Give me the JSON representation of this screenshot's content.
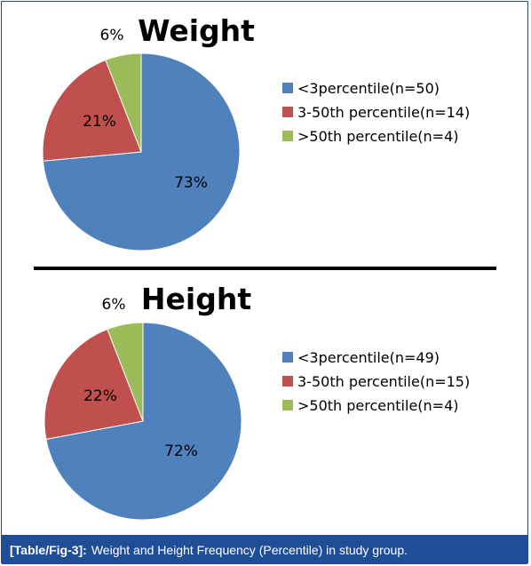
{
  "chart_data": [
    {
      "type": "pie",
      "title": "Weight",
      "categories": [
        "<3percentile(n=50)",
        "3-50th percentile(n=14)",
        ">50th percentile(n=4)"
      ],
      "values": [
        50,
        14,
        4
      ],
      "data_labels": [
        "73%",
        "21%",
        "6%"
      ],
      "colors": [
        "#4f81bd",
        "#c0504d",
        "#9bbb59"
      ],
      "legend": "right"
    },
    {
      "type": "pie",
      "title": "Height",
      "categories": [
        "<3percentile(n=49)",
        "3-50th percentile(n=15)",
        ">50th percentile(n=4)"
      ],
      "values": [
        49,
        15,
        4
      ],
      "data_labels": [
        "72%",
        "22%",
        "6%"
      ],
      "colors": [
        "#4f81bd",
        "#c0504d",
        "#9bbb59"
      ],
      "legend": "right"
    }
  ],
  "caption": {
    "label": "[Table/Fig-3]:",
    "text": "Weight and Height Frequency (Percentile) in study group."
  },
  "colors": {
    "caption_background": "#1f4e96",
    "caption_text": "#ffffff",
    "divider": "#000000"
  }
}
